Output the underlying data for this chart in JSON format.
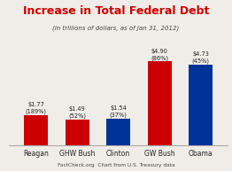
{
  "title": "Increase in Total Federal Debt",
  "subtitle": "(in trillions of dollars, as of Jan 31, 2012)",
  "footer": "FactCheck.org  Chart from U.S. Treasury data",
  "categories": [
    "Reagan",
    "GHW Bush",
    "Clinton",
    "GW Bush",
    "Obama"
  ],
  "values": [
    1.77,
    1.49,
    1.54,
    4.9,
    4.73
  ],
  "labels": [
    "$1.77\n(189%)",
    "$1.49\n(52%)",
    "$1.54\n(37%)",
    "$4.90\n(86%)",
    "$4.73\n(45%)"
  ],
  "bar_colors": [
    "#cc0000",
    "#cc0000",
    "#003399",
    "#cc0000",
    "#003399"
  ],
  "title_color": "#cc0000",
  "subtitle_color": "#444444",
  "footer_color": "#444444",
  "label_color": "#222222",
  "background_color": "#f0ede8",
  "ylim": [
    0,
    6.0
  ],
  "bar_width": 0.58,
  "title_fontsize": 9.0,
  "subtitle_fontsize": 5.0,
  "label_fontsize": 4.8,
  "xtick_fontsize": 5.5,
  "footer_fontsize": 4.2
}
